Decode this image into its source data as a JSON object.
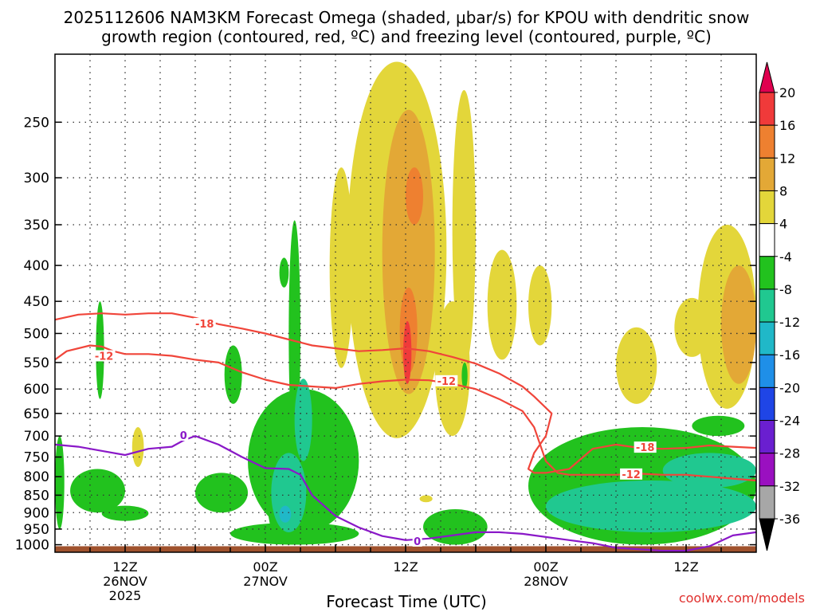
{
  "chart_data": {
    "type": "heatmap",
    "title_line1": "2025112606 NAM3KM Forecast Omega (shaded, μbar/s) for KPOU with dendritic snow",
    "title_line2": "growth region (contoured, red, ºC) and freezing level (contoured, purple, ºC)",
    "xlabel": "Forecast Time (UTC)",
    "credit": "coolwx.com/models",
    "x_hours_range": [
      0,
      60
    ],
    "y_pressure_range_hpa": [
      200,
      1025
    ],
    "y_ticks": [
      250,
      300,
      350,
      400,
      450,
      500,
      550,
      600,
      650,
      700,
      750,
      800,
      850,
      900,
      950,
      1000
    ],
    "x_ticks": [
      {
        "hour": 6,
        "line1": "12Z",
        "line2": "26NOV",
        "line3": "2025"
      },
      {
        "hour": 18,
        "line1": "00Z",
        "line2": "27NOV",
        "line3": ""
      },
      {
        "hour": 30,
        "line1": "12Z",
        "line2": "",
        "line3": ""
      },
      {
        "hour": 42,
        "line1": "00Z",
        "line2": "28NOV",
        "line3": ""
      },
      {
        "hour": 54,
        "line1": "12Z",
        "line2": "",
        "line3": ""
      }
    ],
    "colorbar": {
      "labels": [
        "20",
        "16",
        "12",
        "8",
        "4",
        "-4",
        "-8",
        "-12",
        "-16",
        "-20",
        "-24",
        "-28",
        "-32",
        "-36"
      ],
      "colors": [
        "#e0004f",
        "#f03a3a",
        "#ee8030",
        "#e3a836",
        "#e3d63a",
        "#ffffff",
        "#22c21e",
        "#20c890",
        "#20b8c8",
        "#1f8fe8",
        "#1f45e6",
        "#6a1fd0",
        "#9a10c0",
        "#a7a7a7",
        "#000000"
      ]
    },
    "omega_regions": [
      {
        "level": "4",
        "color": "#e3d63a",
        "hours": [
          25,
          33.5
        ],
        "hpa": [
          205,
          705
        ]
      },
      {
        "level": "4",
        "color": "#e3d63a",
        "hours": [
          23.5,
          25.5
        ],
        "hpa": [
          290,
          560
        ]
      },
      {
        "level": "4",
        "color": "#e3d63a",
        "hours": [
          34,
          36
        ],
        "hpa": [
          225,
          560
        ]
      },
      {
        "level": "4",
        "color": "#e3d63a",
        "hours": [
          32.5,
          35.5
        ],
        "hpa": [
          450,
          700
        ]
      },
      {
        "level": "4",
        "color": "#e3d63a",
        "hours": [
          37,
          39.5
        ],
        "hpa": [
          380,
          545
        ]
      },
      {
        "level": "4",
        "color": "#e3d63a",
        "hours": [
          40.5,
          42.5
        ],
        "hpa": [
          400,
          520
        ]
      },
      {
        "level": "4",
        "color": "#e3d63a",
        "hours": [
          48,
          51.5
        ],
        "hpa": [
          490,
          630
        ]
      },
      {
        "level": "4",
        "color": "#e3d63a",
        "hours": [
          53,
          56
        ],
        "hpa": [
          445,
          540
        ]
      },
      {
        "level": "4",
        "color": "#e3d63a",
        "hours": [
          55,
          60
        ],
        "hpa": [
          350,
          640
        ]
      },
      {
        "level": "4",
        "color": "#e3d63a",
        "hours": [
          6.6,
          7.6
        ],
        "hpa": [
          680,
          775
        ]
      },
      {
        "level": "4",
        "color": "#e3d63a",
        "hours": [
          31.2,
          32.3
        ],
        "hpa": [
          850,
          870
        ]
      },
      {
        "level": "8",
        "color": "#e3a836",
        "hours": [
          28,
          32.5
        ],
        "hpa": [
          240,
          610
        ]
      },
      {
        "level": "8",
        "color": "#e3a836",
        "hours": [
          57,
          60
        ],
        "hpa": [
          400,
          590
        ]
      },
      {
        "level": "12",
        "color": "#ee8030",
        "hours": [
          29.5,
          31
        ],
        "hpa": [
          430,
          570
        ]
      },
      {
        "level": "12",
        "color": "#ee8030",
        "hours": [
          30,
          31.5
        ],
        "hpa": [
          290,
          350
        ]
      },
      {
        "level": "16",
        "color": "#f03a3a",
        "hours": [
          29.8,
          30.5
        ],
        "hpa": [
          480,
          590
        ]
      },
      {
        "level": "-4",
        "color": "#22c21e",
        "hours": [
          16.5,
          26
        ],
        "hpa": [
          600,
          960
        ]
      },
      {
        "level": "-4",
        "color": "#22c21e",
        "hours": [
          20,
          21
        ],
        "hpa": [
          345,
          730
        ]
      },
      {
        "level": "-4",
        "color": "#22c21e",
        "hours": [
          18,
          20
        ],
        "hpa": [
          620,
          980
        ]
      },
      {
        "level": "-4",
        "color": "#22c21e",
        "hours": [
          14.5,
          16
        ],
        "hpa": [
          520,
          630
        ]
      },
      {
        "level": "-4",
        "color": "#22c21e",
        "hours": [
          12,
          16.5
        ],
        "hpa": [
          790,
          900
        ]
      },
      {
        "level": "-4",
        "color": "#22c21e",
        "hours": [
          1.3,
          6
        ],
        "hpa": [
          780,
          900
        ]
      },
      {
        "level": "-4",
        "color": "#22c21e",
        "hours": [
          4,
          8
        ],
        "hpa": [
          880,
          925
        ]
      },
      {
        "level": "-4",
        "color": "#22c21e",
        "hours": [
          0,
          0.8
        ],
        "hpa": [
          700,
          950
        ]
      },
      {
        "level": "-4",
        "color": "#22c21e",
        "hours": [
          3.5,
          4.2
        ],
        "hpa": [
          450,
          620
        ]
      },
      {
        "level": "-4",
        "color": "#22c21e",
        "hours": [
          19.2,
          20
        ],
        "hpa": [
          390,
          430
        ]
      },
      {
        "level": "-4",
        "color": "#22c21e",
        "hours": [
          34.8,
          35.3
        ],
        "hpa": [
          550,
          600
        ]
      },
      {
        "level": "-4",
        "color": "#22c21e",
        "hours": [
          31.5,
          37
        ],
        "hpa": [
          890,
          1000
        ]
      },
      {
        "level": "-4",
        "color": "#22c21e",
        "hours": [
          40.5,
          60
        ],
        "hpa": [
          680,
          1000
        ]
      },
      {
        "level": "-4",
        "color": "#22c21e",
        "hours": [
          54.5,
          59
        ],
        "hpa": [
          655,
          700
        ]
      },
      {
        "level": "-4",
        "color": "#22c21e",
        "hours": [
          15,
          26
        ],
        "hpa": [
          930,
          1000
        ]
      },
      {
        "level": "-8",
        "color": "#20c890",
        "hours": [
          18.5,
          21.5
        ],
        "hpa": [
          740,
          960
        ]
      },
      {
        "level": "-8",
        "color": "#20c890",
        "hours": [
          20.5,
          22
        ],
        "hpa": [
          580,
          760
        ]
      },
      {
        "level": "-8",
        "color": "#20c890",
        "hours": [
          42,
          60
        ],
        "hpa": [
          810,
          960
        ]
      },
      {
        "level": "-8",
        "color": "#20c890",
        "hours": [
          52,
          60
        ],
        "hpa": [
          740,
          830
        ]
      },
      {
        "level": "-12",
        "color": "#20b8c8",
        "hours": [
          19.2,
          20.2
        ],
        "hpa": [
          880,
          930
        ]
      }
    ],
    "ground_hpa": 1005,
    "series": [
      {
        "name": "-18",
        "color": "#f0453a",
        "hours": [
          0,
          2,
          4,
          6,
          8,
          10,
          12,
          14,
          16,
          18,
          20,
          22,
          24,
          26,
          28,
          30,
          32,
          34,
          36,
          38,
          40,
          41,
          42.5,
          42,
          41,
          40.5,
          41,
          42,
          44,
          46,
          48,
          50,
          52,
          54,
          56,
          58,
          60
        ],
        "hpa": [
          478,
          470,
          468,
          470,
          468,
          468,
          475,
          485,
          492,
          500,
          510,
          520,
          525,
          530,
          528,
          525,
          530,
          540,
          552,
          570,
          595,
          615,
          650,
          700,
          740,
          780,
          790,
          790,
          780,
          730,
          720,
          728,
          730,
          728,
          722,
          725,
          728
        ]
      },
      {
        "name": "-12",
        "color": "#f0453a",
        "hours": [
          0,
          1,
          3,
          4,
          5,
          6,
          8,
          10,
          12,
          14,
          16,
          18,
          20,
          22,
          24,
          26,
          28,
          30,
          32,
          34,
          36,
          38,
          40,
          41,
          42,
          43,
          44,
          46,
          48,
          50,
          52,
          54,
          56,
          58,
          60
        ],
        "hpa": [
          545,
          530,
          520,
          522,
          530,
          535,
          535,
          538,
          545,
          550,
          568,
          582,
          592,
          595,
          598,
          590,
          585,
          582,
          583,
          590,
          600,
          620,
          645,
          680,
          760,
          790,
          795,
          795,
          795,
          792,
          795,
          795,
          800,
          805,
          810
        ]
      },
      {
        "name": "0",
        "color": "#8a18c8",
        "hours": [
          0,
          2,
          4,
          6,
          8,
          10,
          11,
          12,
          14,
          16,
          18,
          20,
          21,
          22,
          24,
          26,
          28,
          30,
          32,
          34,
          36,
          38,
          40,
          42,
          44,
          46,
          48,
          50,
          52,
          54,
          56,
          58,
          60
        ],
        "hpa": [
          720,
          725,
          735,
          745,
          730,
          725,
          710,
          700,
          720,
          750,
          778,
          780,
          795,
          850,
          910,
          945,
          972,
          985,
          980,
          970,
          960,
          960,
          965,
          975,
          985,
          995,
          1010,
          1015,
          1020,
          1020,
          1005,
          970,
          960
        ]
      }
    ],
    "contour_labels": [
      {
        "text": "-18",
        "hour": 12.8,
        "hpa": 484,
        "color": "#f0453a"
      },
      {
        "text": "-12",
        "hour": 4.2,
        "hpa": 538,
        "color": "#f0453a"
      },
      {
        "text": "-12",
        "hour": 33.5,
        "hpa": 584,
        "color": "#f0453a"
      },
      {
        "text": "-18",
        "hour": 50.5,
        "hpa": 726,
        "color": "#f0453a"
      },
      {
        "text": "-12",
        "hour": 49.3,
        "hpa": 793,
        "color": "#f0453a"
      },
      {
        "text": "0",
        "hour": 11,
        "hpa": 698,
        "color": "#8a18c8"
      },
      {
        "text": "0",
        "hour": 31,
        "hpa": 988,
        "color": "#8a18c8"
      }
    ]
  }
}
